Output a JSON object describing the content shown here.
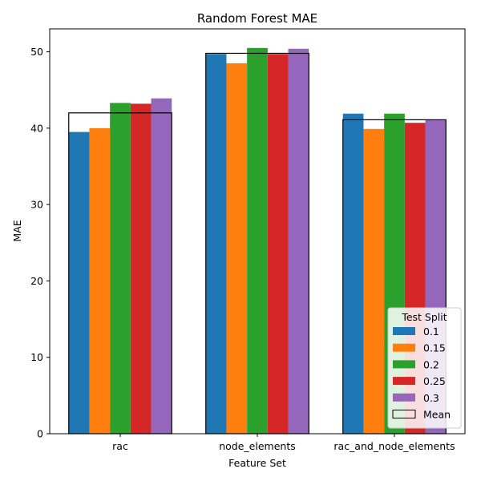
{
  "chart_data": {
    "type": "bar",
    "title": "Random Forest MAE",
    "xlabel": "Feature Set",
    "ylabel": "MAE",
    "categories": [
      "rac",
      "node_elements",
      "rac_and_node_elements"
    ],
    "ylim": [
      0,
      53
    ],
    "yticks": [
      0,
      10,
      20,
      30,
      40,
      50
    ],
    "legend": {
      "title": "Test Split",
      "placement": "lower-right"
    },
    "series": [
      {
        "name": "0.1",
        "color": "#1f77b4",
        "values": [
          39.5,
          49.7,
          41.9
        ]
      },
      {
        "name": "0.15",
        "color": "#ff7f0e",
        "values": [
          40.0,
          48.5,
          39.9
        ]
      },
      {
        "name": "0.2",
        "color": "#2ca02c",
        "values": [
          43.3,
          50.5,
          41.9
        ]
      },
      {
        "name": "0.25",
        "color": "#d62728",
        "values": [
          43.2,
          49.7,
          40.7
        ]
      },
      {
        "name": "0.3",
        "color": "#9467bd",
        "values": [
          43.9,
          50.4,
          41.1
        ]
      }
    ],
    "mean": {
      "name": "Mean",
      "values": [
        42.0,
        49.8,
        41.1
      ]
    }
  }
}
